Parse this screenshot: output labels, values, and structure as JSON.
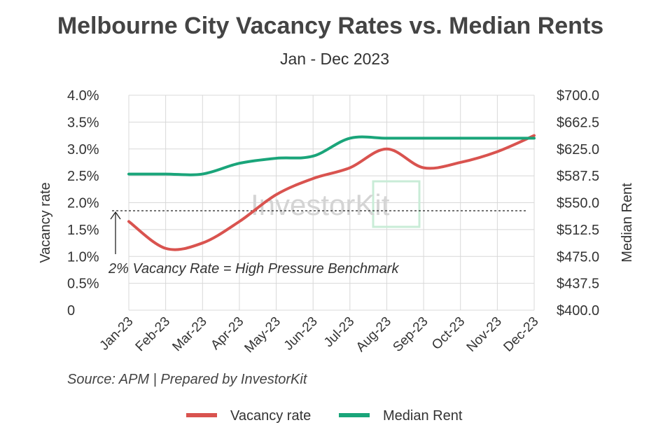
{
  "title": "Melbourne City Vacancy Rates vs. Median Rents",
  "subtitle": "Jan - Dec 2023",
  "source": "Source: APM | Prepared by InvestorKit",
  "watermark": "InvestorKit",
  "chart_data": {
    "type": "line",
    "categories": [
      "Jan-23",
      "Feb-23",
      "Mar-23",
      "Apr-23",
      "May-23",
      "Jun-23",
      "Jul-23",
      "Aug-23",
      "Sep-23",
      "Oct-23",
      "Nov-23",
      "Dec-23"
    ],
    "ylabel": "Vacancy rate",
    "y2label": "Median Rent",
    "ylim": [
      0,
      4.0
    ],
    "y2lim": [
      400,
      700
    ],
    "yticks": [
      "0",
      "0.5%",
      "1.0%",
      "1.5%",
      "2.0%",
      "2.5%",
      "3.0%",
      "3.5%",
      "4.0%"
    ],
    "y2ticks": [
      "$400.0",
      "$437.5",
      "$475.0",
      "$512.5",
      "$550.0",
      "$587.5",
      "$625.0",
      "$662.5",
      "$700.0"
    ],
    "grid": true,
    "legend_position": "bottom",
    "series": [
      {
        "name": "Vacancy rate",
        "axis": "left",
        "color": "#d9534f",
        "values": [
          1.65,
          1.15,
          1.25,
          1.65,
          2.15,
          2.45,
          2.65,
          3.0,
          2.65,
          2.75,
          2.95,
          3.25
        ]
      },
      {
        "name": "Median Rent",
        "axis": "right",
        "color": "#1aa57a",
        "values": [
          590,
          590,
          590,
          605,
          612,
          615,
          640,
          640,
          640,
          640,
          640,
          640
        ]
      }
    ],
    "benchmark": {
      "value": 1.85,
      "label": "2% Vacancy Rate = High Pressure Benchmark"
    }
  }
}
